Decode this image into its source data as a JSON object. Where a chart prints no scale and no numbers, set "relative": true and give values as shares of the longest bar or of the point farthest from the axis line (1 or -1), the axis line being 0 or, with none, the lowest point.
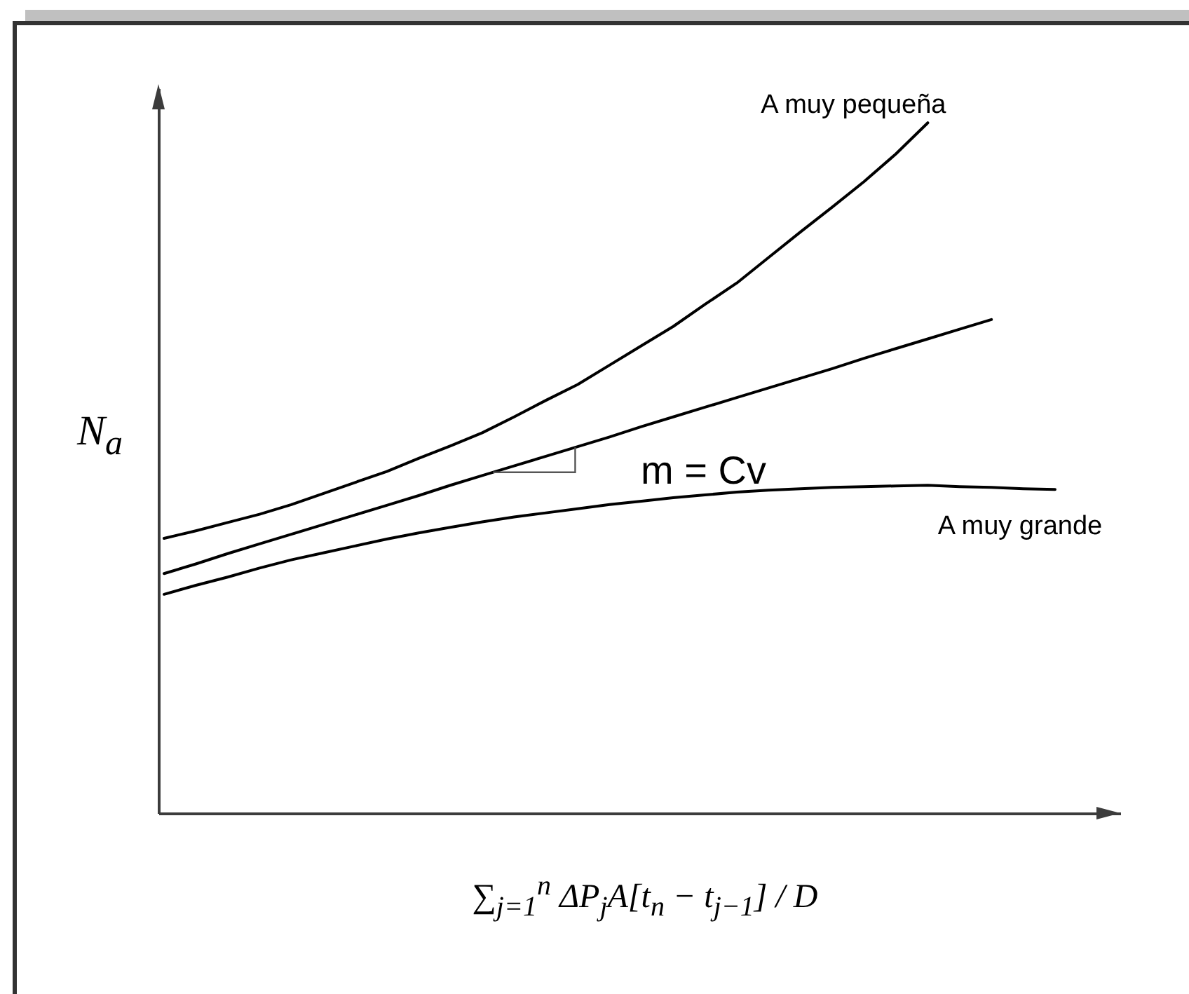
{
  "chart_data": {
    "type": "line",
    "relative": true,
    "xlabel": "∑$_{j=1}$$^{n}$ ΔP$_{j}$A[t$_{n}$ − t$_{j−1}$] / D",
    "ylabel": "N$_{a}$",
    "categories": [
      null,
      null,
      null,
      null,
      null,
      null,
      null,
      null,
      null,
      null,
      null,
      null,
      null,
      null,
      null,
      null,
      null,
      null,
      null,
      null,
      null,
      null,
      null,
      null,
      null,
      null,
      null,
      null,
      null
    ],
    "series": [
      {
        "name": "A muy pequeña",
        "color": "#000000",
        "values": [
          0.398,
          0.409,
          0.421,
          0.433,
          0.447,
          0.463,
          0.479,
          0.495,
          0.514,
          0.532,
          0.551,
          0.574,
          0.598,
          0.621,
          0.649,
          0.677,
          0.705,
          0.737,
          0.768,
          0.805,
          0.842,
          0.878,
          0.915,
          0.955,
          1,
          null,
          null,
          null,
          null
        ]
      },
      {
        "color": "#000000",
        "values": [
          0.347,
          0.361,
          0.376,
          0.39,
          0.404,
          0.418,
          0.432,
          0.446,
          0.46,
          0.475,
          0.489,
          0.503,
          0.517,
          0.531,
          0.545,
          0.56,
          0.574,
          0.588,
          0.602,
          0.616,
          0.63,
          0.644,
          0.659,
          0.673,
          0.687,
          0.701,
          0.715,
          null,
          null
        ]
      },
      {
        "name": "A muy grande",
        "color": "#000000",
        "values": [
          0.317,
          0.33,
          0.342,
          0.355,
          0.367,
          0.377,
          0.387,
          0.397,
          0.406,
          0.414,
          0.422,
          0.429,
          0.435,
          0.441,
          0.447,
          0.452,
          0.457,
          0.461,
          0.465,
          0.468,
          0.47,
          0.472,
          0.473,
          0.474,
          0.475,
          0.473,
          0.472,
          0.47,
          0.469
        ]
      }
    ],
    "annotations": [
      "m = Cv"
    ]
  }
}
